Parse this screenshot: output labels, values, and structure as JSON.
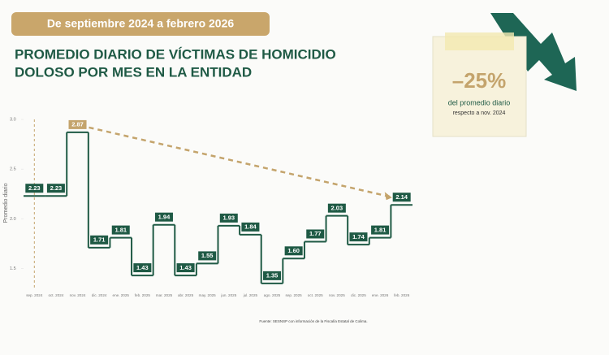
{
  "chart_data": {
    "type": "step",
    "period": "De septiembre 2024 a febrero 2026",
    "title": [
      "PROMEDIO DIARIO DE VÍCTIMAS DE HOMICIDIO",
      "DOLOSO POR MES EN LA ENTIDAD"
    ],
    "y_label": "Promedio diario",
    "source": "Fuente: SESNSP con información de la Fiscalía Estatal de Colima.",
    "callout": {
      "value": "–25%",
      "line1": "del promedio diario",
      "line2": "respecto a nov. 2024"
    },
    "categories": [
      "sep. 2024",
      "oct. 2024",
      "nov. 2024",
      "dic. 2024",
      "ene. 2025",
      "feb. 2025",
      "mar. 2025",
      "abr. 2025",
      "may. 2025",
      "jun. 2025",
      "jul. 2025",
      "ago. 2025",
      "sep. 2025",
      "oct. 2025",
      "nov. 2025",
      "dic. 2025",
      "ene. 2026",
      "feb. 2026"
    ],
    "values": [
      2.23,
      2.23,
      2.87,
      1.71,
      1.81,
      1.43,
      1.94,
      1.43,
      1.55,
      1.93,
      1.84,
      1.35,
      1.6,
      1.77,
      2.03,
      1.74,
      1.81,
      2.14
    ],
    "value_labels": [
      "2.23",
      "2.23",
      "2.87",
      "1.71",
      "1.81",
      "1.43",
      "1.94",
      "1.43",
      "1.55",
      "1.93",
      "1.84",
      "1.35",
      "1.60",
      "1.77",
      "2.03",
      "1.74",
      "1.81",
      "2.14"
    ],
    "color": "#1f5a45",
    "label_colors": [
      "#1f5a45",
      "#1f5a45",
      "#c4a46c",
      "#1f5a45",
      "#1f5a45",
      "#1f5a45",
      "#1f5a45",
      "#1f5a45",
      "#1f5a45",
      "#1f5a45",
      "#1f5a45",
      "#1f5a45",
      "#1f5a45",
      "#1f5a45",
      "#1f5a45",
      "#1f5a45",
      "#1f5a45",
      "#1f5a45"
    ],
    "ylim": [
      1.3,
      3.0
    ],
    "yticks": [
      1.5,
      {
        "value": 2,
        "label": "2.0"
      },
      2.5,
      {
        "value": 3,
        "label": "3.0"
      }
    ]
  }
}
